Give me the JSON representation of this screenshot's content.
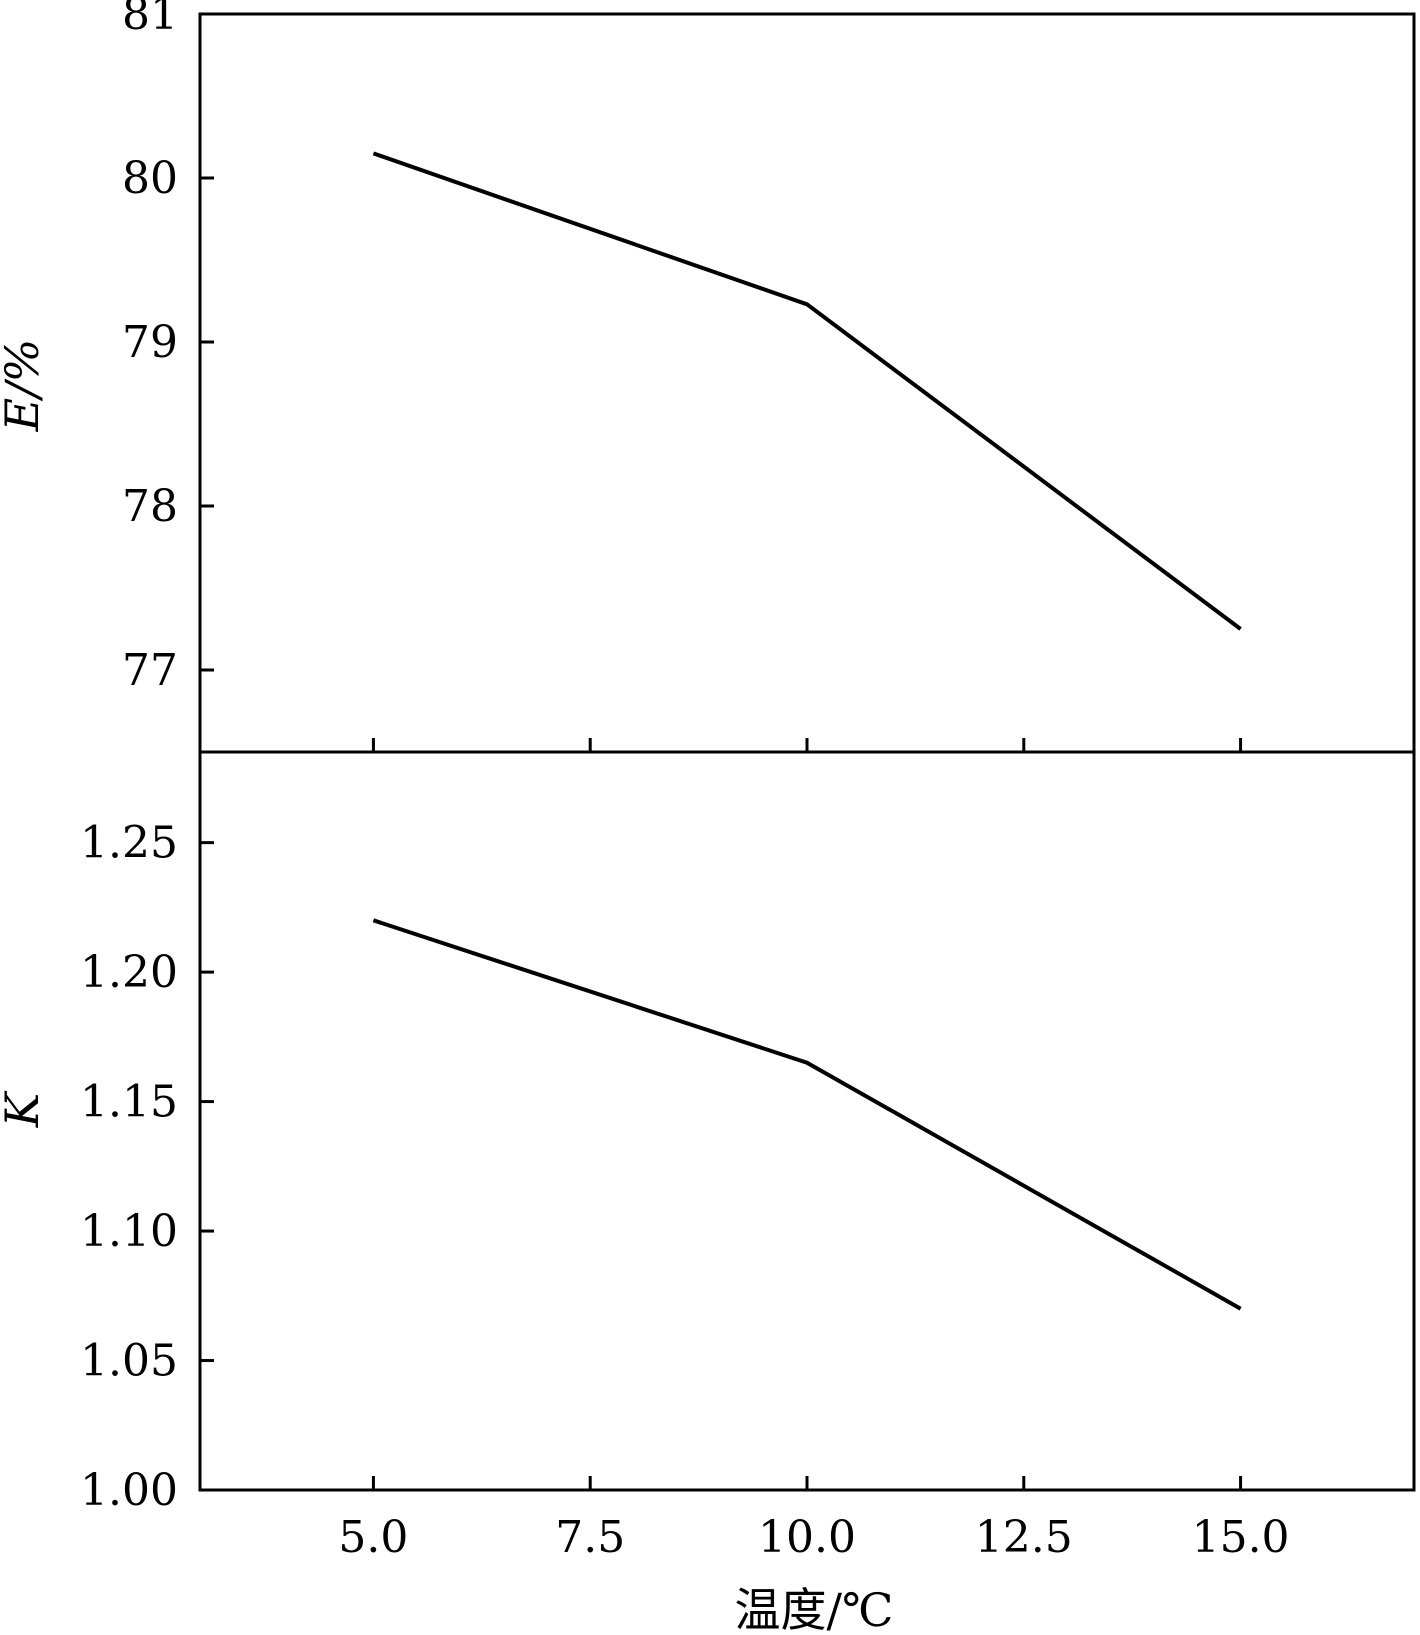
{
  "chart_data": [
    {
      "type": "line",
      "title": "",
      "xlabel": "",
      "ylabel": "E/%",
      "x": [
        5.0,
        10.0,
        15.0
      ],
      "series": [
        {
          "values": [
            80.15,
            79.23,
            77.25
          ]
        }
      ],
      "xlim": [
        3.0,
        17.0
      ],
      "ylim": [
        76.5,
        81.0
      ],
      "yticks": [
        77,
        78,
        79,
        80,
        81
      ],
      "ytick_labels": [
        "77",
        "78",
        "79",
        "80",
        "81"
      ],
      "xticks": [
        5.0,
        7.5,
        10.0,
        12.5,
        15.0
      ],
      "xtick_labels": [],
      "grid": false
    },
    {
      "type": "line",
      "title": "",
      "xlabel": "温度/℃",
      "ylabel": "K",
      "x": [
        5.0,
        10.0,
        15.0
      ],
      "series": [
        {
          "values": [
            1.22,
            1.165,
            1.07
          ]
        }
      ],
      "xlim": [
        3.0,
        17.0
      ],
      "ylim": [
        1.0,
        1.285
      ],
      "yticks": [
        1.0,
        1.05,
        1.1,
        1.15,
        1.2,
        1.25
      ],
      "ytick_labels": [
        "1.00",
        "1.05",
        "1.10",
        "1.15",
        "1.20",
        "1.25"
      ],
      "xticks": [
        5.0,
        7.5,
        10.0,
        12.5,
        15.0
      ],
      "xtick_labels": [
        "5.0",
        "7.5",
        "10.0",
        "12.5",
        "15.0"
      ],
      "grid": false
    }
  ],
  "colors": {
    "line": "#000000",
    "background": "#ffffff"
  }
}
